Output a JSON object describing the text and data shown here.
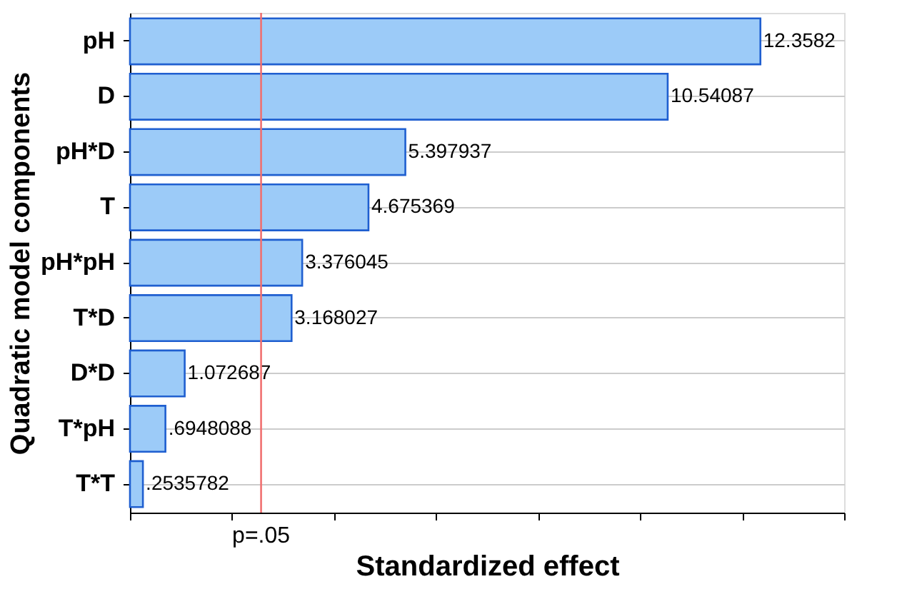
{
  "chart_data": {
    "type": "bar",
    "orientation": "horizontal",
    "xlabel": "Standardized effect",
    "ylabel": "Quadratic model components",
    "categories": [
      "pH",
      "D",
      "pH*D",
      "T",
      "pH*pH",
      "T*D",
      "D*D",
      "T*pH",
      "T*T"
    ],
    "values": [
      12.3582,
      10.54087,
      5.397937,
      4.675369,
      3.376045,
      3.168027,
      1.072687,
      0.6948088,
      0.2535782
    ],
    "value_labels": [
      "12.3582",
      "10.54087",
      "5.397937",
      "4.675369",
      "3.376045",
      "3.168027",
      "1.072687",
      ".6948088",
      ".2535782"
    ],
    "color": "#9ccbf8",
    "xlim": [
      0,
      14
    ],
    "ref_lines": [
      {
        "axis": "x",
        "value": 2.57,
        "label": "p=.05",
        "color": "#f07070"
      }
    ],
    "grid": "y"
  }
}
